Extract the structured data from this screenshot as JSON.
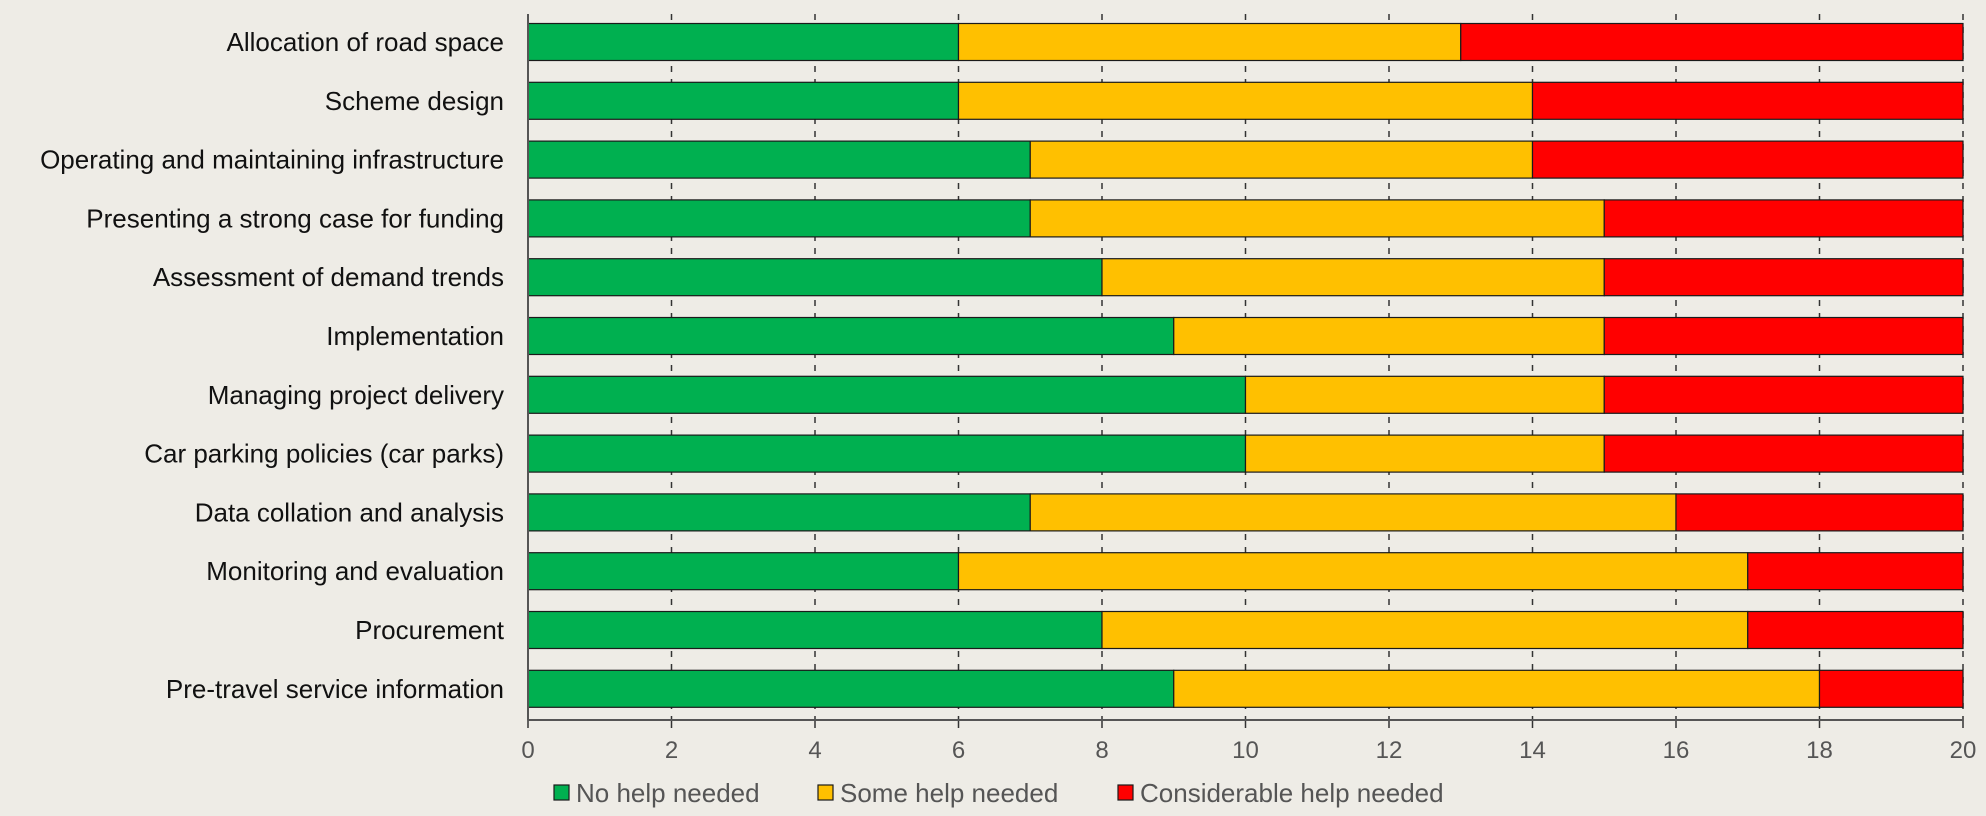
{
  "chart_data": {
    "type": "bar",
    "orientation": "horizontal",
    "stacked": true,
    "categories": [
      "Allocation of road space",
      "Scheme design",
      "Operating and maintaining infrastructure",
      "Presenting a strong case for funding",
      "Assessment of demand trends",
      "Implementation",
      "Managing project delivery",
      "Car parking policies (car parks)",
      "Data collation and analysis",
      "Monitoring and evaluation",
      "Procurement",
      "Pre-travel service information"
    ],
    "series": [
      {
        "name": "No help needed",
        "color": "#00b050",
        "values": [
          6,
          6,
          7,
          7,
          8,
          9,
          10,
          10,
          7,
          6,
          8,
          9
        ]
      },
      {
        "name": "Some help needed",
        "color": "#ffc000",
        "values": [
          7,
          8,
          7,
          8,
          7,
          6,
          5,
          5,
          9,
          11,
          9,
          9
        ]
      },
      {
        "name": "Considerable help needed",
        "color": "#ff0000",
        "values": [
          7,
          6,
          6,
          5,
          5,
          5,
          5,
          5,
          4,
          3,
          3,
          2
        ]
      }
    ],
    "xlim": [
      0,
      20
    ],
    "xticks": [
      "0",
      "2",
      "4",
      "6",
      "8",
      "10",
      "12",
      "14",
      "16",
      "18",
      "20"
    ],
    "grid": "vertical dashed",
    "legend_position": "bottom",
    "title": "",
    "xlabel": "",
    "ylabel": ""
  }
}
